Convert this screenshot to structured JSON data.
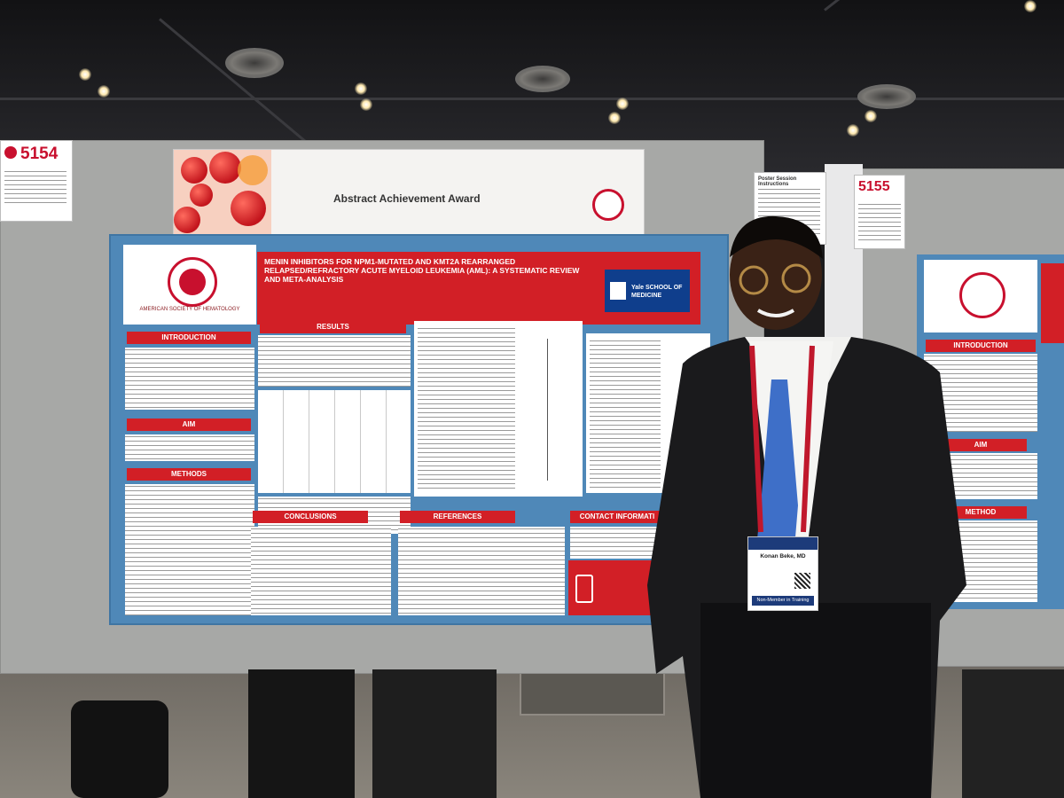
{
  "signs": {
    "left_number": "5154",
    "right_number": "5155"
  },
  "award": {
    "label": "Abstract Achievement Award"
  },
  "poster": {
    "society": "AMERICAN SOCIETY OF HEMATOLOGY",
    "title": "MENIN INHIBITORS FOR NPM1-MUTATED AND KMT2A REARRANGED RELAPSED/REFRACTORY ACUTE MYELOID LEUKEMIA (AML): A SYSTEMATIC REVIEW AND META-ANALYSIS",
    "institution": "Yale SCHOOL OF MEDICINE",
    "sections": {
      "introduction": "INTRODUCTION",
      "aim": "AIM",
      "methods": "METHODS",
      "results": "RESULTS",
      "conclusions": "CONCLUSIONS",
      "references": "REFERENCES",
      "contact": "CONTACT INFORMATI"
    }
  },
  "badge": {
    "name": "Konan Beke, MD",
    "role": "Non-Member in Training"
  },
  "right_poster": {
    "headers": [
      "INTRODUCTION",
      "AIM",
      "METHOD"
    ]
  },
  "right_sign": {
    "title": "Poster Session Instructions"
  },
  "colors": {
    "accent_red": "#d21f26",
    "poster_blue": "#4f88b8",
    "board_gray": "#a7a8a6"
  }
}
